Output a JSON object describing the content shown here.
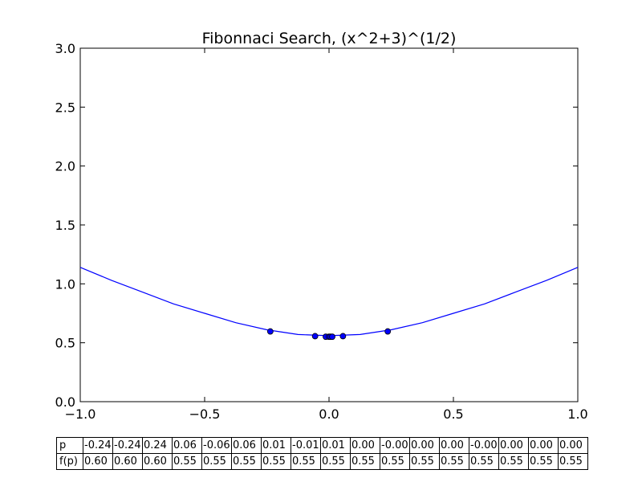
{
  "chart_data": {
    "type": "line",
    "title": "Fibonnaci Search, (x^2+3)^(1/2)",
    "xlabel": "",
    "ylabel": "",
    "xlim": [
      -1.0,
      1.0
    ],
    "ylim": [
      0.0,
      3.0
    ],
    "x_ticks": [
      "−1.0",
      "−0.5",
      "0.0",
      "0.5",
      "1.0"
    ],
    "y_ticks": [
      "0.0",
      "0.5",
      "1.0",
      "1.5",
      "2.0",
      "2.5",
      "3.0"
    ],
    "grid": false,
    "line_color": "#0000ff",
    "marker_color": "#0000ff",
    "curve": {
      "x": [
        -1.0,
        -0.875,
        -0.75,
        -0.625,
        -0.5,
        -0.375,
        -0.25,
        -0.125,
        0.0,
        0.125,
        0.25,
        0.375,
        0.5,
        0.625,
        0.75,
        0.875,
        1.0
      ],
      "y": [
        1.14,
        1.03,
        0.93,
        0.83,
        0.75,
        0.67,
        0.61,
        0.57,
        0.56,
        0.57,
        0.61,
        0.67,
        0.75,
        0.83,
        0.93,
        1.03,
        1.14
      ]
    },
    "points": {
      "x": [
        -0.236,
        -0.056,
        -0.013,
        0.0,
        0.006,
        0.013,
        0.056,
        0.236
      ],
      "y": [
        0.596,
        0.556,
        0.551,
        0.551,
        0.551,
        0.551,
        0.556,
        0.596
      ]
    }
  },
  "table": {
    "row_labels": [
      "p",
      "f(p)"
    ],
    "p": [
      "-0.24",
      "-0.24",
      "0.24",
      "0.06",
      "-0.06",
      "0.06",
      "0.01",
      "-0.01",
      "0.01",
      "0.00",
      "-0.00",
      "0.00",
      "0.00",
      "-0.00",
      "0.00",
      "0.00",
      "0.00"
    ],
    "fp": [
      "0.60",
      "0.60",
      "0.60",
      "0.55",
      "0.55",
      "0.55",
      "0.55",
      "0.55",
      "0.55",
      "0.55",
      "0.55",
      "0.55",
      "0.55",
      "0.55",
      "0.55",
      "0.55",
      "0.55"
    ]
  }
}
